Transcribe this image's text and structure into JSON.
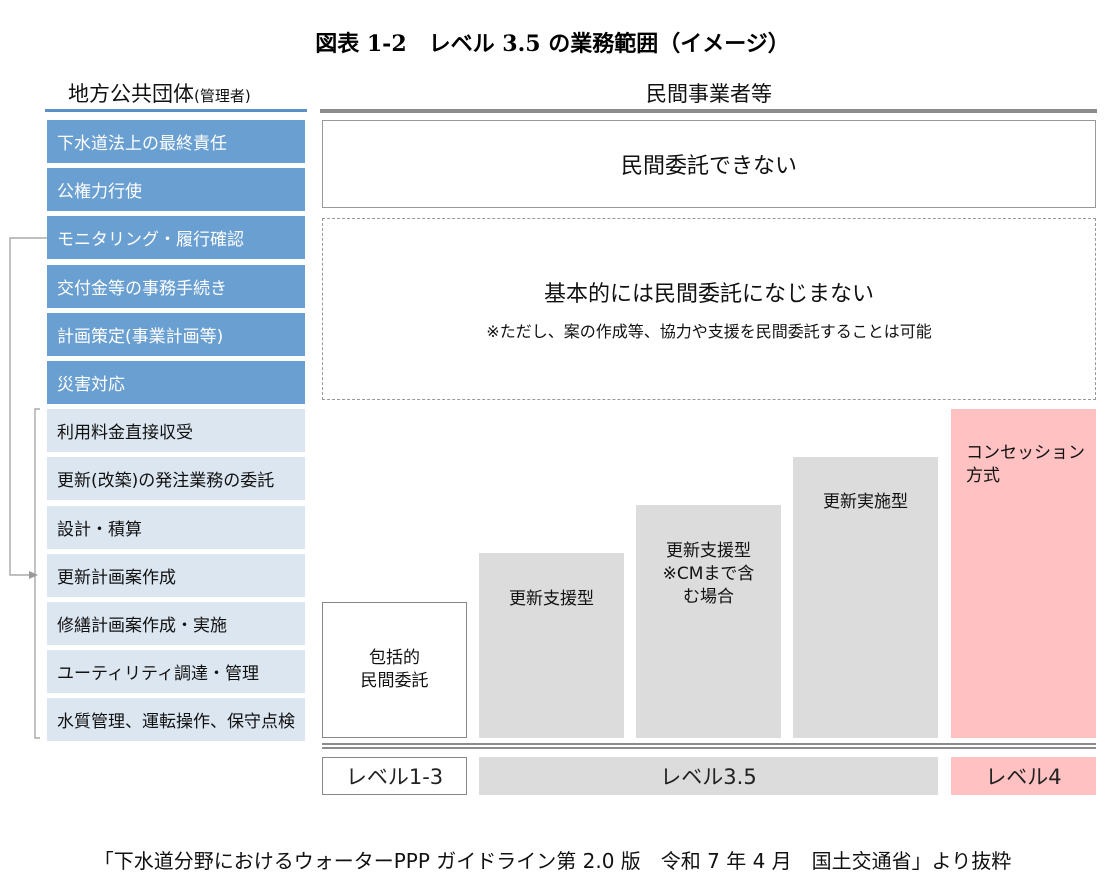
{
  "title": "図表 1-2　レベル 3.5 の業務範囲（イメージ）",
  "left_header": {
    "title": "地方公共団体",
    "note": "(管理者)"
  },
  "right_header": "民間事業者等",
  "left_items": [
    "下水道法上の最終責任",
    "公権力行使",
    "モニタリング・履行確認",
    "交付金等の事務手続き",
    "計画策定(事業計画等)",
    "災害対応",
    "利用料金直接収受",
    "更新(改築)の発注業務の委託",
    "設計・積算",
    "更新計画案作成",
    "修繕計画案作成・実施",
    "ユーティリティ調達・管理",
    "水質管理、運転操作、保守点検"
  ],
  "not_outsourced": "民間委託できない",
  "not_suited": {
    "title": "基本的には民間委託になじまない",
    "note": "※ただし、案の作成等、協力や支援を民間委託することは可能"
  },
  "bars": [
    {
      "lines": [
        "包括的",
        "民間委託"
      ]
    },
    {
      "lines": [
        "更新支援型"
      ]
    },
    {
      "lines": [
        "更新支援型",
        "※CMまで含",
        "む場合"
      ]
    },
    {
      "lines": [
        "更新実施型"
      ]
    },
    {
      "lines": [
        "コンセッション",
        "方式"
      ]
    }
  ],
  "levels": [
    "レベル1-3",
    "レベル3.5",
    "レベル4"
  ],
  "source": "「下水道分野におけるウォーターPPP ガイドライン第 2.0 版　令和 7 年 4 月　国土交通省」より抜粋"
}
